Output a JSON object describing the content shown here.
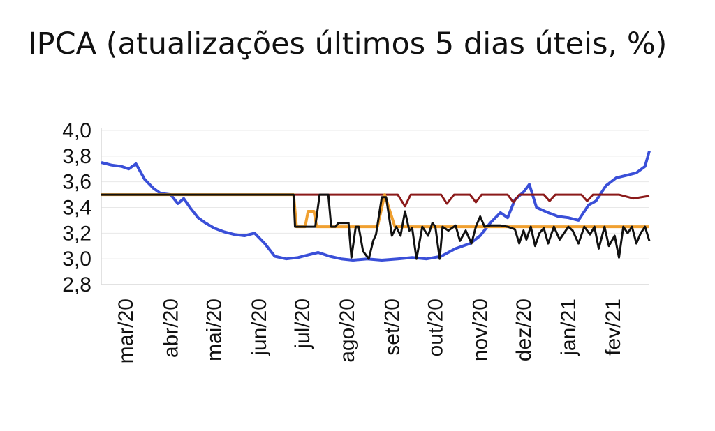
{
  "chart_data": {
    "type": "line",
    "title": "IPCA (atualizações últimos 5 dias úteis, %)",
    "xlabel": "",
    "ylabel": "",
    "ylim": [
      2.8,
      4.0
    ],
    "yticks": [
      "4,0",
      "3,8",
      "3,6",
      "3,4",
      "3,2",
      "3,0",
      "2,8"
    ],
    "ytick_values": [
      4.0,
      3.8,
      3.6,
      3.4,
      3.2,
      3.0,
      2.8
    ],
    "xlim": [
      "2020-02-13",
      "2021-02-26"
    ],
    "xticks": [
      "mar/20",
      "abr/20",
      "mai/20",
      "jun/20",
      "jul/20",
      "ago/20",
      "set/20",
      "out/20",
      "nov/20",
      "dez/20",
      "jan/21",
      "fev/21"
    ],
    "xtick_dates": [
      "2020-03-01",
      "2020-04-01",
      "2020-05-01",
      "2020-06-01",
      "2020-07-01",
      "2020-08-01",
      "2020-09-01",
      "2020-10-01",
      "2020-11-01",
      "2020-12-01",
      "2021-01-01",
      "2021-02-01"
    ],
    "grid": true,
    "legend": "none",
    "series": [
      {
        "color": "#3a4fd8",
        "x": [
          "2020-02-13",
          "2020-02-20",
          "2020-02-27",
          "2020-03-03",
          "2020-03-08",
          "2020-03-14",
          "2020-03-20",
          "2020-03-25",
          "2020-04-01",
          "2020-04-06",
          "2020-04-10",
          "2020-04-15",
          "2020-04-20",
          "2020-04-25",
          "2020-05-01",
          "2020-05-08",
          "2020-05-15",
          "2020-05-22",
          "2020-05-29",
          "2020-06-05",
          "2020-06-12",
          "2020-06-20",
          "2020-06-28",
          "2020-07-05",
          "2020-07-12",
          "2020-07-20",
          "2020-07-28",
          "2020-08-05",
          "2020-08-15",
          "2020-08-25",
          "2020-09-05",
          "2020-09-15",
          "2020-09-25",
          "2020-10-05",
          "2020-10-15",
          "2020-10-25",
          "2020-11-01",
          "2020-11-08",
          "2020-11-15",
          "2020-11-20",
          "2020-11-25",
          "2020-12-01",
          "2020-12-05",
          "2020-12-10",
          "2020-12-18",
          "2020-12-25",
          "2021-01-01",
          "2021-01-08",
          "2021-01-15",
          "2021-01-20",
          "2021-01-27",
          "2021-02-03",
          "2021-02-10",
          "2021-02-17",
          "2021-02-23",
          "2021-02-26"
        ],
        "y": [
          3.75,
          3.73,
          3.72,
          3.7,
          3.74,
          3.62,
          3.55,
          3.51,
          3.5,
          3.43,
          3.47,
          3.39,
          3.32,
          3.28,
          3.24,
          3.21,
          3.19,
          3.18,
          3.2,
          3.12,
          3.02,
          3.0,
          3.01,
          3.03,
          3.05,
          3.02,
          3.0,
          2.99,
          3.0,
          2.99,
          3.0,
          3.01,
          3.0,
          3.02,
          3.08,
          3.12,
          3.18,
          3.28,
          3.36,
          3.32,
          3.46,
          3.52,
          3.58,
          3.4,
          3.36,
          3.33,
          3.32,
          3.3,
          3.42,
          3.45,
          3.57,
          3.63,
          3.65,
          3.67,
          3.72,
          3.84
        ]
      },
      {
        "color": "#8b1a1a",
        "x": [
          "2020-02-13",
          "2020-07-01",
          "2020-09-05",
          "2020-09-10",
          "2020-09-14",
          "2020-10-05",
          "2020-10-09",
          "2020-10-14",
          "2020-10-25",
          "2020-10-29",
          "2020-11-02",
          "2020-11-20",
          "2020-11-24",
          "2020-11-28",
          "2020-12-15",
          "2020-12-19",
          "2020-12-23",
          "2021-01-10",
          "2021-01-14",
          "2021-01-18",
          "2021-02-05",
          "2021-02-15",
          "2021-02-26"
        ],
        "y": [
          3.5,
          3.5,
          3.5,
          3.41,
          3.5,
          3.5,
          3.43,
          3.5,
          3.5,
          3.44,
          3.5,
          3.5,
          3.44,
          3.5,
          3.5,
          3.45,
          3.5,
          3.5,
          3.45,
          3.5,
          3.5,
          3.47,
          3.49
        ]
      },
      {
        "color": "#f0a030",
        "x": [
          "2020-02-13",
          "2020-06-25",
          "2020-06-27",
          "2020-07-03",
          "2020-07-05",
          "2020-07-09",
          "2020-07-11",
          "2020-07-15",
          "2020-07-20",
          "2020-08-15",
          "2020-08-22",
          "2020-08-27",
          "2020-09-03",
          "2021-02-26"
        ],
        "y": [
          3.5,
          3.5,
          3.25,
          3.25,
          3.37,
          3.37,
          3.25,
          3.25,
          3.25,
          3.25,
          3.25,
          3.5,
          3.25,
          3.25
        ]
      },
      {
        "color": "#111111",
        "x": [
          "2020-02-13",
          "2020-06-25",
          "2020-06-26",
          "2020-07-10",
          "2020-07-13",
          "2020-07-19",
          "2020-07-21",
          "2020-07-24",
          "2020-07-26",
          "2020-08-02",
          "2020-08-04",
          "2020-08-07",
          "2020-08-09",
          "2020-08-12",
          "2020-08-16",
          "2020-08-19",
          "2020-08-21",
          "2020-08-25",
          "2020-08-28",
          "2020-09-01",
          "2020-09-04",
          "2020-09-07",
          "2020-09-10",
          "2020-09-13",
          "2020-09-15",
          "2020-09-18",
          "2020-09-22",
          "2020-09-26",
          "2020-09-29",
          "2020-10-01",
          "2020-10-04",
          "2020-10-06",
          "2020-10-10",
          "2020-10-15",
          "2020-10-18",
          "2020-10-22",
          "2020-10-26",
          "2020-10-29",
          "2020-11-01",
          "2020-11-04",
          "2020-11-08",
          "2020-11-15",
          "2020-11-20",
          "2020-11-25",
          "2020-11-28",
          "2020-12-01",
          "2020-12-03",
          "2020-12-06",
          "2020-12-09",
          "2020-12-12",
          "2020-12-15",
          "2020-12-18",
          "2020-12-22",
          "2020-12-26",
          "2021-01-01",
          "2021-01-04",
          "2021-01-08",
          "2021-01-12",
          "2021-01-16",
          "2021-01-19",
          "2021-01-22",
          "2021-01-26",
          "2021-01-29",
          "2021-02-02",
          "2021-02-05",
          "2021-02-08",
          "2021-02-11",
          "2021-02-14",
          "2021-02-17",
          "2021-02-20",
          "2021-02-23",
          "2021-02-26"
        ],
        "y": [
          3.5,
          3.5,
          3.25,
          3.25,
          3.5,
          3.5,
          3.25,
          3.25,
          3.28,
          3.28,
          3.01,
          3.25,
          3.25,
          3.06,
          3.0,
          3.14,
          3.19,
          3.48,
          3.48,
          3.18,
          3.25,
          3.18,
          3.37,
          3.22,
          3.24,
          3.0,
          3.25,
          3.18,
          3.28,
          3.25,
          3.0,
          3.25,
          3.22,
          3.26,
          3.14,
          3.22,
          3.12,
          3.25,
          3.33,
          3.25,
          3.26,
          3.26,
          3.25,
          3.23,
          3.12,
          3.22,
          3.15,
          3.25,
          3.1,
          3.2,
          3.24,
          3.12,
          3.25,
          3.15,
          3.25,
          3.22,
          3.12,
          3.25,
          3.19,
          3.25,
          3.08,
          3.25,
          3.1,
          3.18,
          3.01,
          3.25,
          3.2,
          3.25,
          3.12,
          3.2,
          3.25,
          3.14
        ]
      }
    ]
  }
}
